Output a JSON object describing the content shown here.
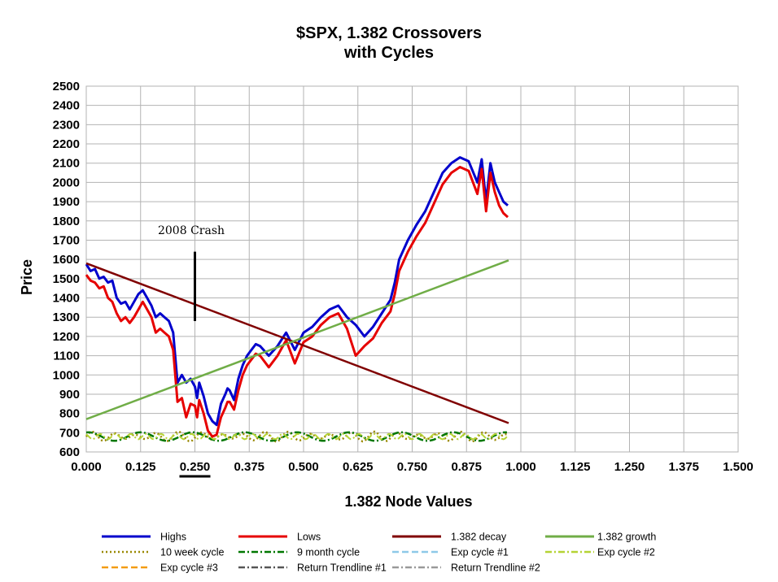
{
  "chart_data": {
    "type": "line",
    "title_line1": "$SPX, 1.382 Crossovers",
    "title_line2": "with Cycles",
    "xlabel": "1.382 Node Values",
    "ylabel": "Price",
    "xlim": [
      0,
      1.5
    ],
    "ylim": [
      600,
      2500
    ],
    "x_ticks": [
      "0.000",
      "0.125",
      "0.250",
      "0.375",
      "0.500",
      "0.625",
      "0.750",
      "0.875",
      "1.000",
      "1.125",
      "1.250",
      "1.375",
      "1.500"
    ],
    "y_ticks": [
      "600",
      "700",
      "800",
      "900",
      "1000",
      "1100",
      "1200",
      "1300",
      "1400",
      "1500",
      "1600",
      "1700",
      "1800",
      "1900",
      "2000",
      "2100",
      "2200",
      "2300",
      "2400",
      "2500"
    ],
    "grid": true,
    "legend_position": "bottom",
    "highlighted_x_tick": "0.250",
    "annotation": {
      "text": "2008  Crash",
      "x": 0.25,
      "y_top": 1640,
      "y_bottom": 1280
    },
    "series": [
      {
        "name": "Highs",
        "color": "#0000cc",
        "style": "solid",
        "x": [
          0,
          0.01,
          0.02,
          0.03,
          0.04,
          0.05,
          0.06,
          0.07,
          0.08,
          0.09,
          0.1,
          0.11,
          0.12,
          0.13,
          0.14,
          0.15,
          0.16,
          0.17,
          0.18,
          0.19,
          0.2,
          0.21,
          0.22,
          0.23,
          0.24,
          0.25,
          0.255,
          0.26,
          0.27,
          0.28,
          0.29,
          0.3,
          0.31,
          0.32,
          0.325,
          0.33,
          0.34,
          0.35,
          0.36,
          0.37,
          0.38,
          0.39,
          0.4,
          0.42,
          0.44,
          0.46,
          0.48,
          0.5,
          0.52,
          0.54,
          0.56,
          0.58,
          0.6,
          0.62,
          0.64,
          0.66,
          0.68,
          0.7,
          0.71,
          0.72,
          0.74,
          0.76,
          0.78,
          0.8,
          0.82,
          0.84,
          0.86,
          0.88,
          0.9,
          0.91,
          0.92,
          0.93,
          0.94,
          0.95,
          0.96,
          0.97
        ],
        "values": [
          1575,
          1540,
          1550,
          1500,
          1510,
          1480,
          1490,
          1400,
          1370,
          1380,
          1340,
          1380,
          1420,
          1440,
          1400,
          1360,
          1300,
          1320,
          1300,
          1280,
          1220,
          960,
          1000,
          960,
          980,
          940,
          880,
          960,
          890,
          800,
          760,
          740,
          850,
          900,
          930,
          920,
          870,
          980,
          1050,
          1100,
          1130,
          1160,
          1150,
          1100,
          1150,
          1220,
          1130,
          1220,
          1250,
          1300,
          1340,
          1360,
          1300,
          1260,
          1200,
          1250,
          1320,
          1390,
          1480,
          1600,
          1700,
          1780,
          1850,
          1950,
          2050,
          2100,
          2130,
          2110,
          2000,
          2120,
          1900,
          2100,
          2000,
          1950,
          1900,
          1880
        ]
      },
      {
        "name": "Lows",
        "color": "#e60000",
        "style": "solid",
        "x": [
          0,
          0.01,
          0.02,
          0.03,
          0.04,
          0.05,
          0.06,
          0.07,
          0.08,
          0.09,
          0.1,
          0.11,
          0.12,
          0.13,
          0.14,
          0.15,
          0.16,
          0.17,
          0.18,
          0.19,
          0.2,
          0.21,
          0.22,
          0.23,
          0.24,
          0.25,
          0.255,
          0.26,
          0.27,
          0.28,
          0.29,
          0.3,
          0.31,
          0.32,
          0.325,
          0.33,
          0.34,
          0.35,
          0.36,
          0.37,
          0.38,
          0.39,
          0.4,
          0.42,
          0.44,
          0.46,
          0.48,
          0.5,
          0.52,
          0.54,
          0.56,
          0.58,
          0.6,
          0.62,
          0.64,
          0.66,
          0.68,
          0.7,
          0.71,
          0.72,
          0.74,
          0.76,
          0.78,
          0.8,
          0.82,
          0.84,
          0.86,
          0.88,
          0.9,
          0.91,
          0.92,
          0.93,
          0.94,
          0.95,
          0.96,
          0.97
        ],
        "values": [
          1520,
          1490,
          1480,
          1450,
          1460,
          1400,
          1380,
          1320,
          1280,
          1300,
          1270,
          1300,
          1340,
          1380,
          1340,
          1300,
          1220,
          1240,
          1220,
          1200,
          1130,
          860,
          880,
          780,
          850,
          840,
          780,
          870,
          800,
          710,
          680,
          690,
          780,
          830,
          860,
          860,
          820,
          920,
          1000,
          1050,
          1080,
          1110,
          1100,
          1040,
          1100,
          1180,
          1060,
          1170,
          1200,
          1260,
          1300,
          1320,
          1240,
          1100,
          1150,
          1190,
          1270,
          1330,
          1420,
          1540,
          1640,
          1720,
          1790,
          1890,
          1990,
          2050,
          2080,
          2060,
          1940,
          2070,
          1850,
          2050,
          1950,
          1880,
          1840,
          1820
        ]
      },
      {
        "name": "1.382 decay",
        "color": "#800000",
        "style": "solid",
        "x": [
          0,
          0.972
        ],
        "values": [
          1580,
          750
        ]
      },
      {
        "name": "1.382 growth",
        "color": "#70ad47",
        "style": "solid",
        "x": [
          0,
          0.972
        ],
        "values": [
          770,
          1595
        ]
      },
      {
        "name": "10 week cycle",
        "color": "#998800",
        "style": "dotted",
        "x": [],
        "values": []
      },
      {
        "name": "9 month cycle",
        "color": "#007700",
        "style": "dashdot",
        "x": [],
        "values": []
      },
      {
        "name": "Exp cycle #1",
        "color": "#8ec9e8",
        "style": "dashed",
        "x": [],
        "values": []
      },
      {
        "name": "Exp cycle #2",
        "color": "#b5d334",
        "style": "dashdot",
        "x": [],
        "values": []
      },
      {
        "name": "Exp cycle #3",
        "color": "#f39c12",
        "style": "dashed",
        "x": [],
        "values": []
      },
      {
        "name": "Return Trendline #1",
        "color": "#555555",
        "style": "dashdot",
        "x": [],
        "values": []
      },
      {
        "name": "Return Trendline #2",
        "color": "#999999",
        "style": "dashdot",
        "x": [],
        "values": []
      }
    ]
  }
}
